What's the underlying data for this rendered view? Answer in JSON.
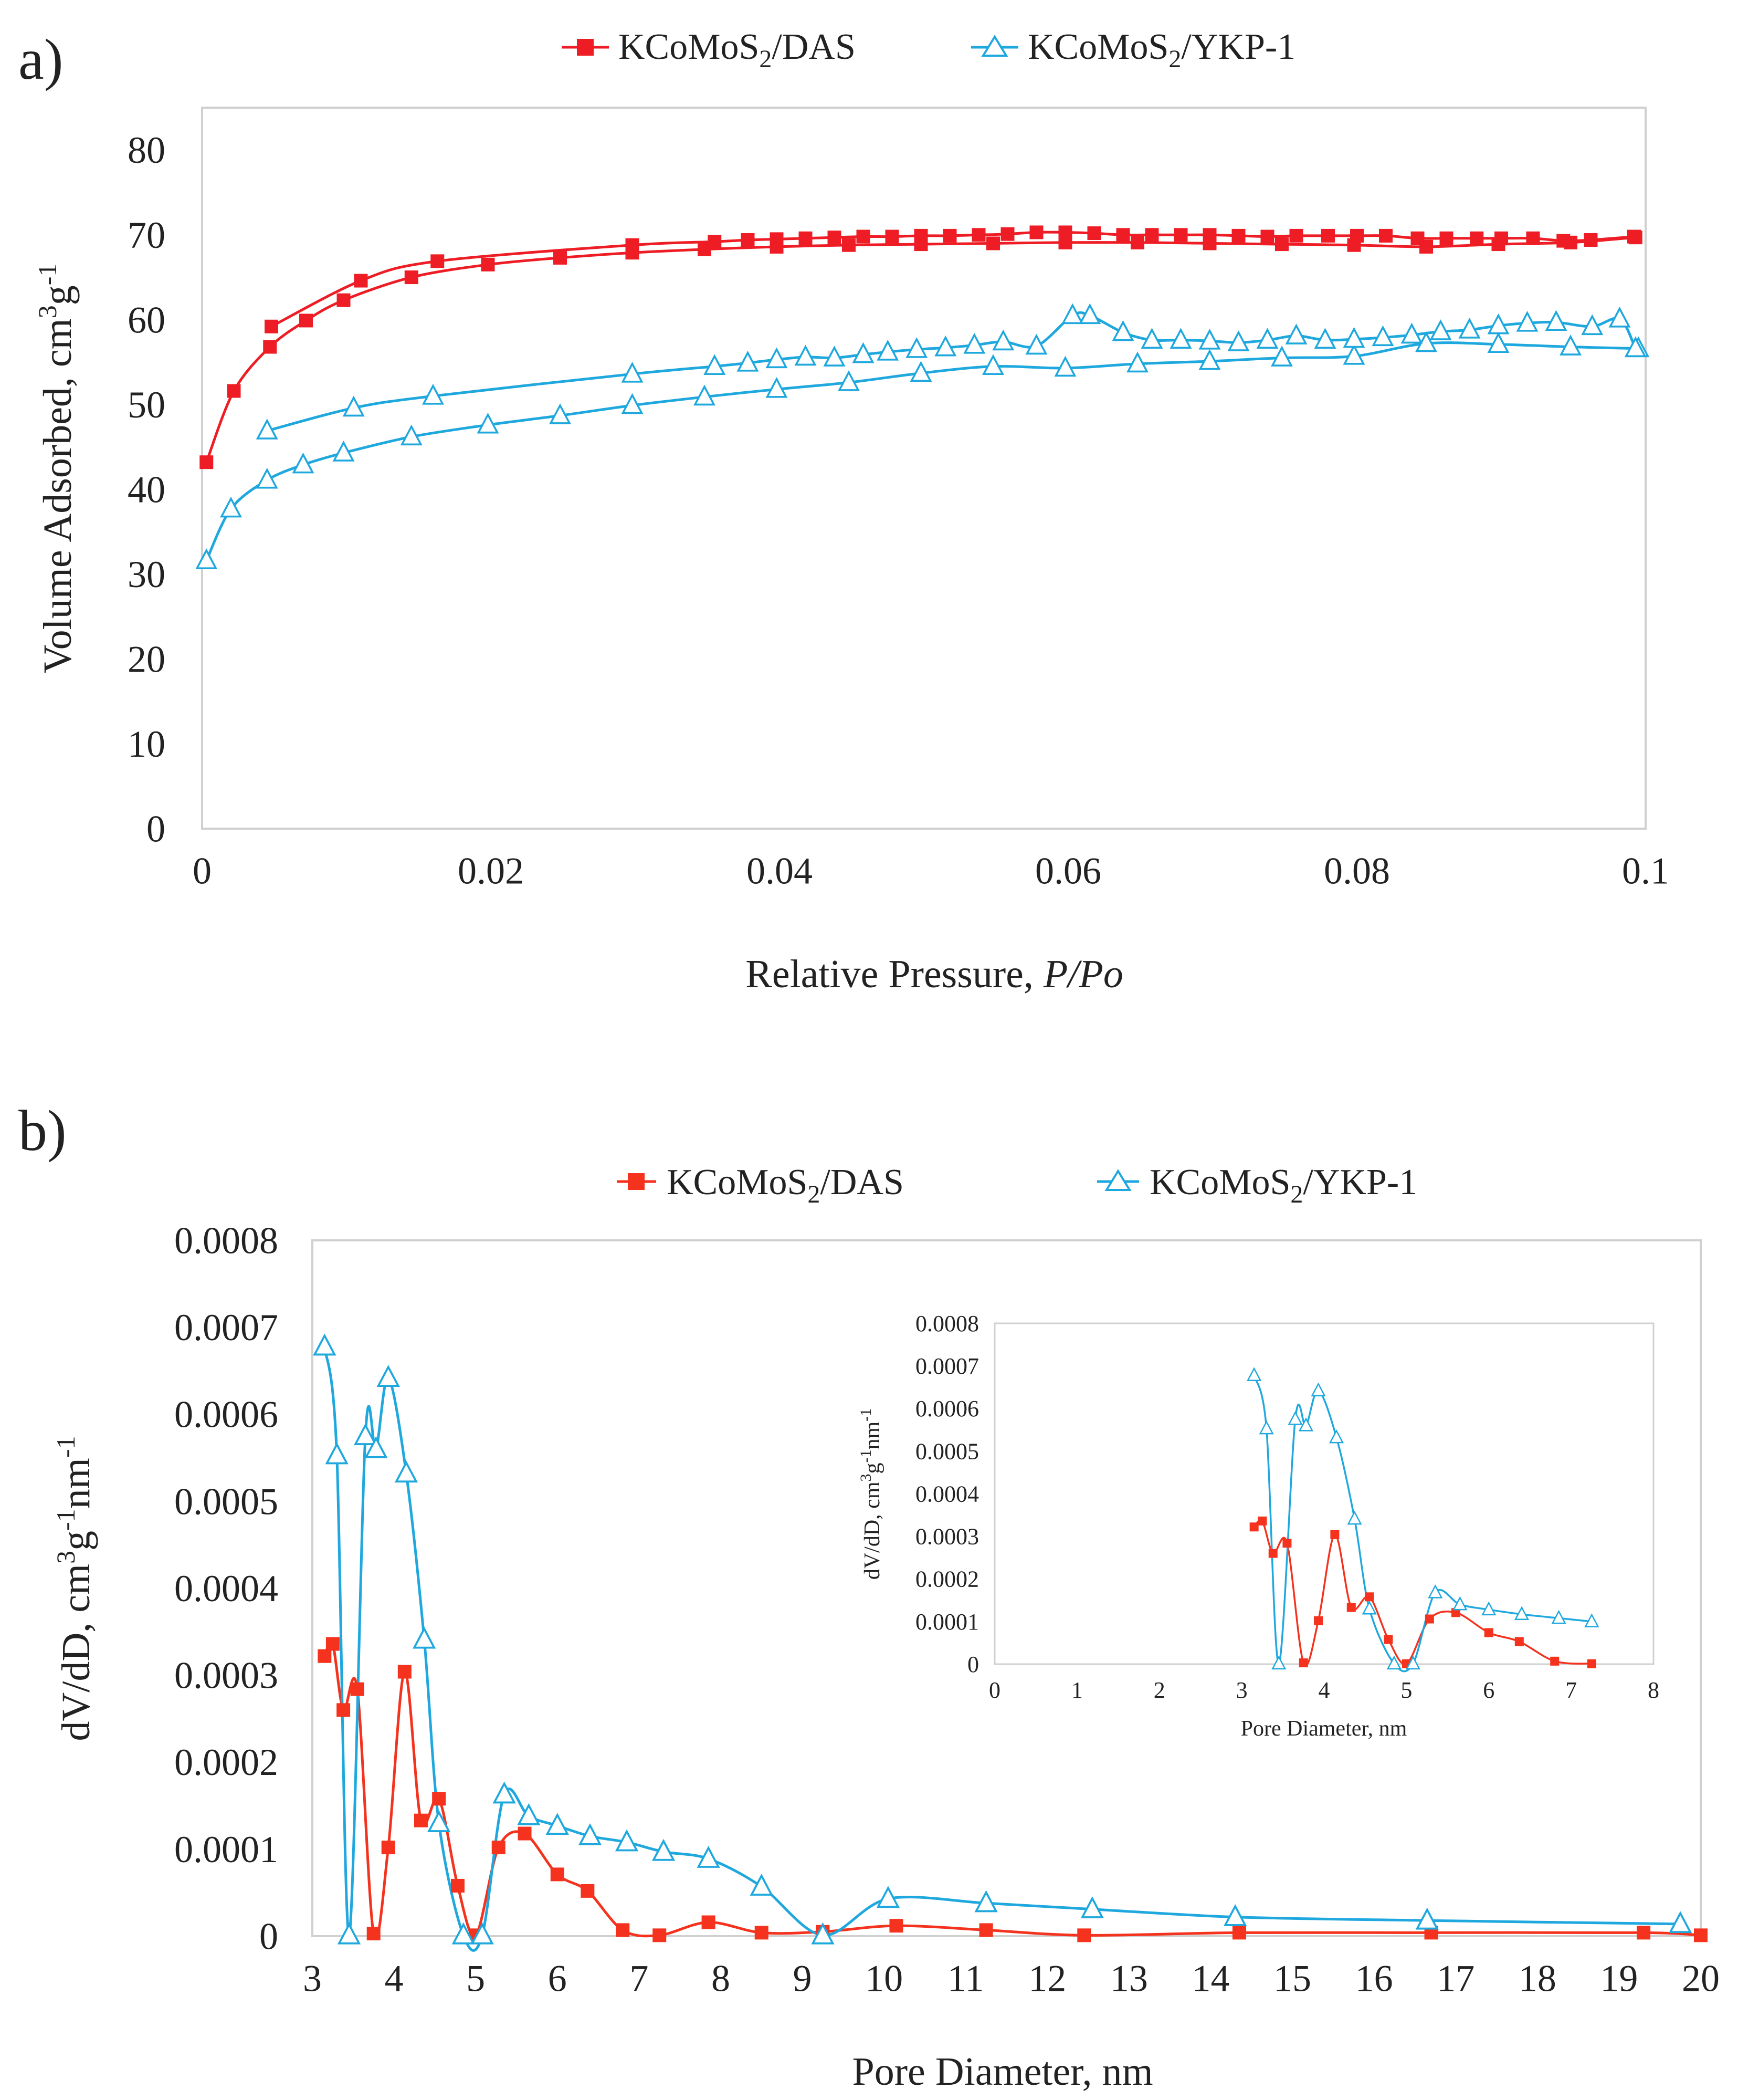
{
  "colors": {
    "red": "#ee1c24",
    "blue": "#1fa8de",
    "red_b": "#f4321d"
  },
  "chart_data": [
    {
      "id": "a",
      "panel_label": "a)",
      "type": "scatter",
      "xlabel": "Relative Pressure, ",
      "xlabel_italic": "P/Po",
      "ylabel_main": "Volume Adsorbed, cm",
      "ylabel_sup1": "3",
      "ylabel_mid": "g",
      "ylabel_sup2": "-1",
      "xlim": [
        0,
        0.1
      ],
      "ylim": [
        0,
        85
      ],
      "xticks": [
        0,
        0.02,
        0.04,
        0.06,
        0.08,
        0.1
      ],
      "xtick_labels": [
        "0",
        "0.02",
        "0.04",
        "0.06",
        "0.08",
        "0.1"
      ],
      "yticks": [
        0,
        10,
        20,
        30,
        40,
        50,
        60,
        70,
        80
      ],
      "ytick_labels": [
        "0",
        "10",
        "20",
        "30",
        "40",
        "50",
        "60",
        "70",
        "80"
      ],
      "grid": false,
      "legend_position": "top",
      "series": [
        {
          "name": "KCoMoS",
          "name_sub": "2",
          "name_suffix": "/DAS",
          "marker": "square",
          "color": "#ee1c24",
          "adsorption": [
            [
              0.0003,
              43.2
            ],
            [
              0.0022,
              51.6
            ],
            [
              0.0047,
              56.8
            ],
            [
              0.0072,
              59.9
            ],
            [
              0.0098,
              62.3
            ],
            [
              0.0145,
              65.0
            ],
            [
              0.0198,
              66.5
            ],
            [
              0.0248,
              67.3
            ],
            [
              0.0298,
              67.9
            ],
            [
              0.0348,
              68.3
            ],
            [
              0.0398,
              68.6
            ],
            [
              0.0448,
              68.8
            ],
            [
              0.0498,
              68.9
            ],
            [
              0.0548,
              69.0
            ],
            [
              0.0598,
              69.1
            ],
            [
              0.0648,
              69.1
            ],
            [
              0.0698,
              69.0
            ],
            [
              0.0748,
              68.9
            ],
            [
              0.0798,
              68.8
            ],
            [
              0.0848,
              68.6
            ],
            [
              0.0898,
              68.9
            ],
            [
              0.0948,
              69.1
            ],
            [
              0.0993,
              69.7
            ]
          ],
          "desorption": [
            [
              0.0992,
              69.8
            ],
            [
              0.0962,
              69.4
            ],
            [
              0.0943,
              69.3
            ],
            [
              0.0922,
              69.6
            ],
            [
              0.09,
              69.6
            ],
            [
              0.0883,
              69.6
            ],
            [
              0.0862,
              69.6
            ],
            [
              0.0842,
              69.6
            ],
            [
              0.082,
              69.9
            ],
            [
              0.08,
              69.9
            ],
            [
              0.078,
              69.9
            ],
            [
              0.0758,
              69.9
            ],
            [
              0.0738,
              69.8
            ],
            [
              0.0718,
              69.9
            ],
            [
              0.0698,
              70.0
            ],
            [
              0.0678,
              70.0
            ],
            [
              0.0658,
              70.0
            ],
            [
              0.0638,
              70.0
            ],
            [
              0.0618,
              70.2
            ],
            [
              0.0598,
              70.3
            ],
            [
              0.0578,
              70.3
            ],
            [
              0.0558,
              70.1
            ],
            [
              0.0538,
              70.0
            ],
            [
              0.0518,
              69.9
            ],
            [
              0.0498,
              69.9
            ],
            [
              0.0478,
              69.8
            ],
            [
              0.0458,
              69.8
            ],
            [
              0.0438,
              69.7
            ],
            [
              0.0418,
              69.6
            ],
            [
              0.0398,
              69.5
            ],
            [
              0.0378,
              69.4
            ],
            [
              0.0355,
              69.2
            ],
            [
              0.0298,
              68.8
            ],
            [
              0.0163,
              66.9
            ],
            [
              0.011,
              64.6
            ],
            [
              0.0048,
              59.2
            ]
          ]
        },
        {
          "name": "KCoMoS",
          "name_sub": "2",
          "name_suffix": "/YKP-1",
          "marker": "triangle",
          "color": "#1fa8de",
          "adsorption": [
            [
              0.0003,
              31.6
            ],
            [
              0.002,
              37.7
            ],
            [
              0.0045,
              41.1
            ],
            [
              0.007,
              42.9
            ],
            [
              0.0098,
              44.3
            ],
            [
              0.0145,
              46.2
            ],
            [
              0.0198,
              47.6
            ],
            [
              0.0248,
              48.7
            ],
            [
              0.0298,
              49.9
            ],
            [
              0.0348,
              50.9
            ],
            [
              0.0398,
              51.8
            ],
            [
              0.0448,
              52.6
            ],
            [
              0.0498,
              53.7
            ],
            [
              0.0548,
              54.5
            ],
            [
              0.0598,
              54.3
            ],
            [
              0.0648,
              54.8
            ],
            [
              0.0698,
              55.1
            ],
            [
              0.0748,
              55.5
            ],
            [
              0.0798,
              55.7
            ],
            [
              0.0848,
              57.2
            ],
            [
              0.0898,
              57.1
            ],
            [
              0.0948,
              56.8
            ],
            [
              0.0995,
              56.6
            ]
          ],
          "desorption": [
            [
              0.0993,
              56.6
            ],
            [
              0.0982,
              60.1
            ],
            [
              0.0963,
              59.2
            ],
            [
              0.0938,
              59.7
            ],
            [
              0.0918,
              59.6
            ],
            [
              0.0898,
              59.3
            ],
            [
              0.0878,
              58.8
            ],
            [
              0.0858,
              58.6
            ],
            [
              0.0838,
              58.2
            ],
            [
              0.0818,
              57.9
            ],
            [
              0.0798,
              57.7
            ],
            [
              0.0778,
              57.6
            ],
            [
              0.0758,
              58.1
            ],
            [
              0.0738,
              57.6
            ],
            [
              0.0718,
              57.3
            ],
            [
              0.0698,
              57.5
            ],
            [
              0.0678,
              57.6
            ],
            [
              0.0658,
              57.6
            ],
            [
              0.0638,
              58.5
            ],
            [
              0.0615,
              60.5
            ],
            [
              0.0603,
              60.5
            ],
            [
              0.0578,
              56.9
            ],
            [
              0.0555,
              57.4
            ],
            [
              0.0535,
              57.0
            ],
            [
              0.0515,
              56.7
            ],
            [
              0.0495,
              56.5
            ],
            [
              0.0475,
              56.2
            ],
            [
              0.0458,
              55.9
            ],
            [
              0.0438,
              55.5
            ],
            [
              0.0418,
              55.6
            ],
            [
              0.0398,
              55.3
            ],
            [
              0.0378,
              54.9
            ],
            [
              0.0355,
              54.5
            ],
            [
              0.0298,
              53.6
            ],
            [
              0.016,
              51.0
            ],
            [
              0.0105,
              49.6
            ],
            [
              0.0045,
              46.9
            ]
          ]
        }
      ]
    },
    {
      "id": "b",
      "panel_label": "b)",
      "type": "line",
      "xlabel": "Pore Diameter, nm",
      "ylabel_main": "dV/dD, cm",
      "ylabel_sup1": "3",
      "ylabel_mid": "g",
      "ylabel_sup2": "-1",
      "ylabel_mid2": "nm",
      "ylabel_sup3": "-1",
      "xlim": [
        3,
        20
      ],
      "ylim": [
        0,
        0.0008
      ],
      "xticks": [
        3,
        4,
        5,
        6,
        7,
        8,
        9,
        10,
        11,
        12,
        13,
        14,
        15,
        16,
        17,
        18,
        19,
        20
      ],
      "xtick_labels": [
        "3",
        "4",
        "5",
        "6",
        "7",
        "8",
        "9",
        "10",
        "11",
        "12",
        "13",
        "14",
        "15",
        "16",
        "17",
        "18",
        "19",
        "20"
      ],
      "yticks": [
        0,
        0.0001,
        0.0002,
        0.0003,
        0.0004,
        0.0005,
        0.0006,
        0.0007,
        0.0008
      ],
      "ytick_labels": [
        "0",
        "0.0001",
        "0.0002",
        "0.0003",
        "0.0004",
        "0.0005",
        "0.0006",
        "0.0007",
        "0.0008"
      ],
      "grid": false,
      "legend_position": "top",
      "series": [
        {
          "name": "KCoMoS",
          "name_sub": "2",
          "name_suffix": "/DAS",
          "marker": "square",
          "color": "#f4321d",
          "points": [
            [
              3.15,
              0.000322
            ],
            [
              3.25,
              0.000336
            ],
            [
              3.38,
              0.00026
            ],
            [
              3.55,
              0.000284
            ],
            [
              3.75,
              3e-06
            ],
            [
              3.93,
              0.000102
            ],
            [
              4.13,
              0.000304
            ],
            [
              4.33,
              0.000133
            ],
            [
              4.55,
              0.000158
            ],
            [
              4.78,
              5.8e-05
            ],
            [
              5.0,
              1e-06
            ],
            [
              5.28,
              0.000102
            ],
            [
              5.6,
              0.000118
            ],
            [
              6.0,
              7.1e-05
            ],
            [
              6.37,
              5.2e-05
            ],
            [
              6.8,
              7e-06
            ],
            [
              7.25,
              1e-06
            ],
            [
              7.85,
              1.6e-05
            ],
            [
              8.5,
              4e-06
            ],
            [
              9.25,
              5e-06
            ],
            [
              10.15,
              1.2e-05
            ],
            [
              11.25,
              7e-06
            ],
            [
              12.45,
              1e-06
            ],
            [
              14.35,
              4e-06
            ],
            [
              16.7,
              4e-06
            ],
            [
              19.3,
              4e-06
            ],
            [
              20.0,
              1e-06
            ]
          ]
        },
        {
          "name": "KCoMoS",
          "name_sub": "2",
          "name_suffix": "/YKP-1",
          "marker": "triangle",
          "color": "#1fa8de",
          "points": [
            [
              3.15,
              0.000678
            ],
            [
              3.3,
              0.000553
            ],
            [
              3.45,
              1e-06
            ],
            [
              3.65,
              0.000575
            ],
            [
              3.78,
              0.00056
            ],
            [
              3.93,
              0.000642
            ],
            [
              4.15,
              0.000532
            ],
            [
              4.37,
              0.000341
            ],
            [
              4.55,
              0.00013
            ],
            [
              4.85,
              1e-06
            ],
            [
              5.08,
              1e-06
            ],
            [
              5.35,
              0.000163
            ],
            [
              5.65,
              0.000138
            ],
            [
              6.0,
              0.000127
            ],
            [
              6.4,
              0.000115
            ],
            [
              6.85,
              0.000108
            ],
            [
              7.3,
              9.7e-05
            ],
            [
              7.85,
              8.9e-05
            ],
            [
              8.5,
              5.7e-05
            ],
            [
              9.25,
              1e-06
            ],
            [
              10.05,
              4.3e-05
            ],
            [
              11.25,
              3.8e-05
            ],
            [
              12.55,
              3.1e-05
            ],
            [
              14.3,
              2.2e-05
            ],
            [
              16.65,
              1.8e-05
            ],
            [
              19.75,
              1.4e-05
            ]
          ]
        }
      ],
      "inset": {
        "xlabel": "Pore Diameter, nm",
        "xlim": [
          0,
          8
        ],
        "ylim": [
          0,
          0.0008
        ],
        "xticks": [
          0,
          1,
          2,
          3,
          4,
          5,
          6,
          7,
          8
        ],
        "xtick_labels": [
          "0",
          "1",
          "2",
          "3",
          "4",
          "5",
          "6",
          "7",
          "8"
        ],
        "yticks": [
          0,
          0.0001,
          0.0002,
          0.0003,
          0.0004,
          0.0005,
          0.0006,
          0.0007,
          0.0008
        ],
        "ytick_labels": [
          "0",
          "0.0001",
          "0.0002",
          "0.0003",
          "0.0004",
          "0.0005",
          "0.0006",
          "0.0007",
          "0.0008"
        ],
        "series": [
          {
            "marker": "square",
            "color": "#f4321d",
            "points": [
              [
                3.15,
                0.000322
              ],
              [
                3.25,
                0.000336
              ],
              [
                3.38,
                0.00026
              ],
              [
                3.55,
                0.000284
              ],
              [
                3.75,
                3e-06
              ],
              [
                3.93,
                0.000102
              ],
              [
                4.13,
                0.000304
              ],
              [
                4.33,
                0.000133
              ],
              [
                4.55,
                0.000158
              ],
              [
                4.78,
                5.8e-05
              ],
              [
                5.0,
                1e-06
              ],
              [
                5.28,
                0.000106
              ],
              [
                5.6,
                0.000121
              ],
              [
                6.0,
                7.4e-05
              ],
              [
                6.37,
                5.3e-05
              ],
              [
                6.8,
                7e-06
              ],
              [
                7.25,
                1e-06
              ]
            ]
          },
          {
            "marker": "triangle",
            "color": "#1fa8de",
            "points": [
              [
                3.15,
                0.000678
              ],
              [
                3.3,
                0.000553
              ],
              [
                3.45,
                1e-06
              ],
              [
                3.65,
                0.000575
              ],
              [
                3.78,
                0.00056
              ],
              [
                3.93,
                0.000642
              ],
              [
                4.15,
                0.000532
              ],
              [
                4.37,
                0.000341
              ],
              [
                4.55,
                0.00013
              ],
              [
                4.85,
                1e-06
              ],
              [
                5.08,
                1e-06
              ],
              [
                5.35,
                0.000168
              ],
              [
                5.65,
                0.00014
              ],
              [
                6.0,
                0.000128
              ],
              [
                6.4,
                0.000117
              ],
              [
                6.85,
                0.000108
              ],
              [
                7.25,
                0.0001
              ]
            ]
          }
        ]
      }
    }
  ]
}
